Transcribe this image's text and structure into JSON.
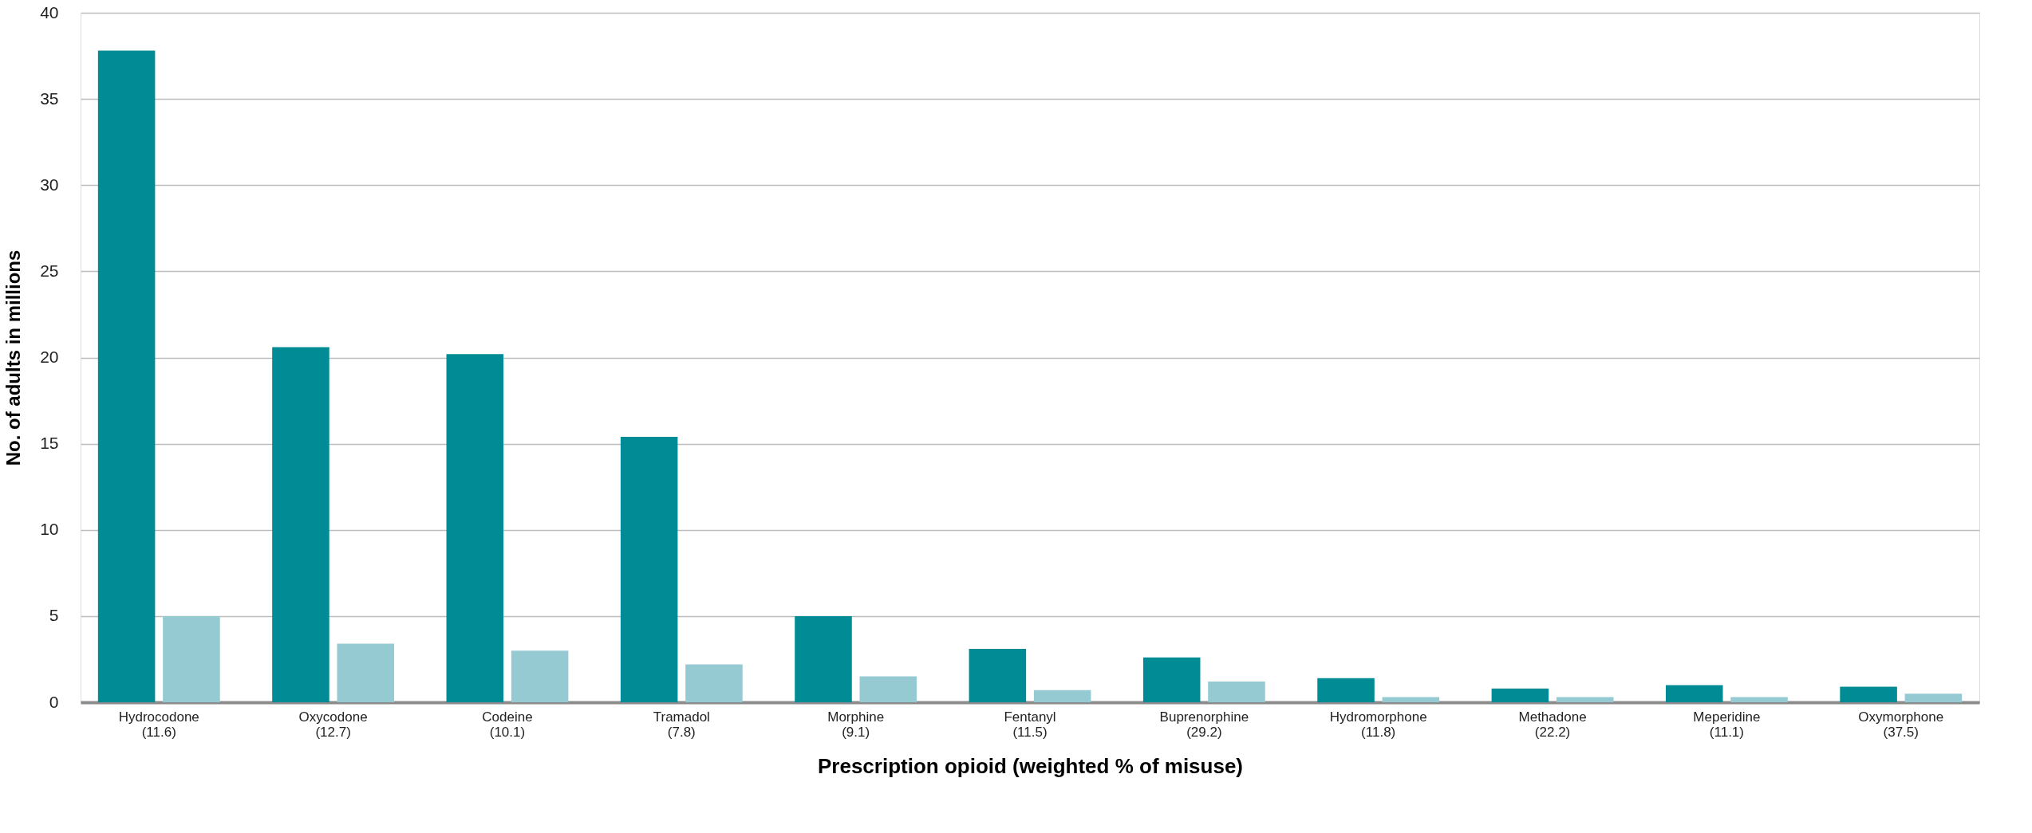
{
  "chart_data": {
    "type": "bar",
    "xlabel": "Prescription opioid (weighted % of misuse)",
    "ylabel": "No. of adults in millions",
    "categories": [
      "Hydrocodone\n(11.6)",
      "Oxycodone\n(12.7)",
      "Codeine\n(10.1)",
      "Tramadol\n(7.8)",
      "Morphine\n(9.1)",
      "Fentanyl\n(11.5)",
      "Buprenorphine\n(29.2)",
      "Hydromorphone\n(11.8)",
      "Methadone\n(22.2)",
      "Meperidine\n(11.1)",
      "Oxymorphone\n(37.5)"
    ],
    "series": [
      {
        "color": "#008b95",
        "values": [
          37.8,
          20.6,
          20.2,
          15.4,
          5.0,
          3.1,
          2.6,
          1.4,
          0.8,
          1.0,
          0.9
        ]
      },
      {
        "color": "#96cad3",
        "values": [
          5.0,
          3.4,
          3.0,
          2.2,
          1.5,
          0.7,
          1.2,
          0.3,
          0.3,
          0.3,
          0.5
        ]
      }
    ],
    "ylim": [
      0,
      40
    ],
    "yticks": [
      0,
      5,
      10,
      15,
      20,
      25,
      30,
      35,
      40
    ],
    "grid": "y",
    "legend": false
  }
}
